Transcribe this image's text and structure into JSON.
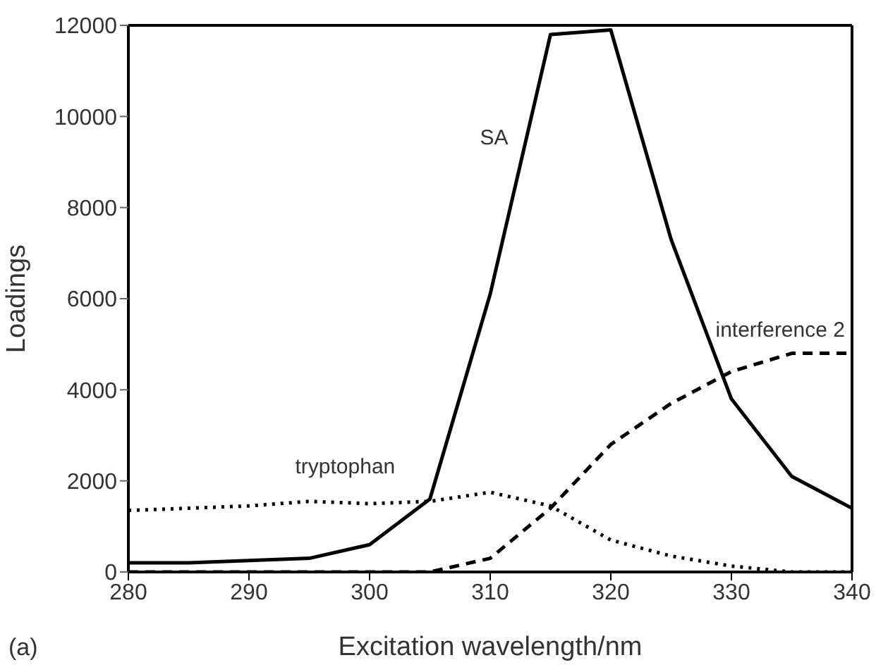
{
  "chart_data": {
    "type": "line",
    "xlabel": "Excitation wavelength/nm",
    "ylabel": "Loadings",
    "x": [
      280,
      285,
      290,
      295,
      300,
      305,
      310,
      315,
      320,
      325,
      330,
      335,
      340
    ],
    "series": [
      {
        "name": "SA",
        "color": "#000000",
        "line_style": "solid",
        "values": [
          200,
          200,
          250,
          300,
          600,
          1600,
          6100,
          11800,
          11900,
          7300,
          3800,
          2100,
          1400
        ]
      },
      {
        "name": "tryptophan",
        "color": "#000000",
        "line_style": "dotted",
        "values": [
          1350,
          1400,
          1450,
          1550,
          1500,
          1550,
          1750,
          1450,
          700,
          350,
          130,
          0,
          0
        ]
      },
      {
        "name": "interference 2",
        "color": "#000000",
        "line_style": "dashed",
        "values": [
          0,
          0,
          0,
          0,
          0,
          0,
          300,
          1400,
          2800,
          3700,
          4400,
          4800,
          4800
        ]
      }
    ],
    "xlim": [
      280,
      340
    ],
    "xticks": [
      280,
      290,
      300,
      310,
      320,
      330,
      340
    ],
    "ylim": [
      0,
      12000
    ],
    "yticks": [
      0,
      2000,
      4000,
      6000,
      8000,
      10000,
      12000
    ],
    "annotations": [
      "(a)"
    ],
    "grid": false,
    "legend": false,
    "marker": "none"
  }
}
